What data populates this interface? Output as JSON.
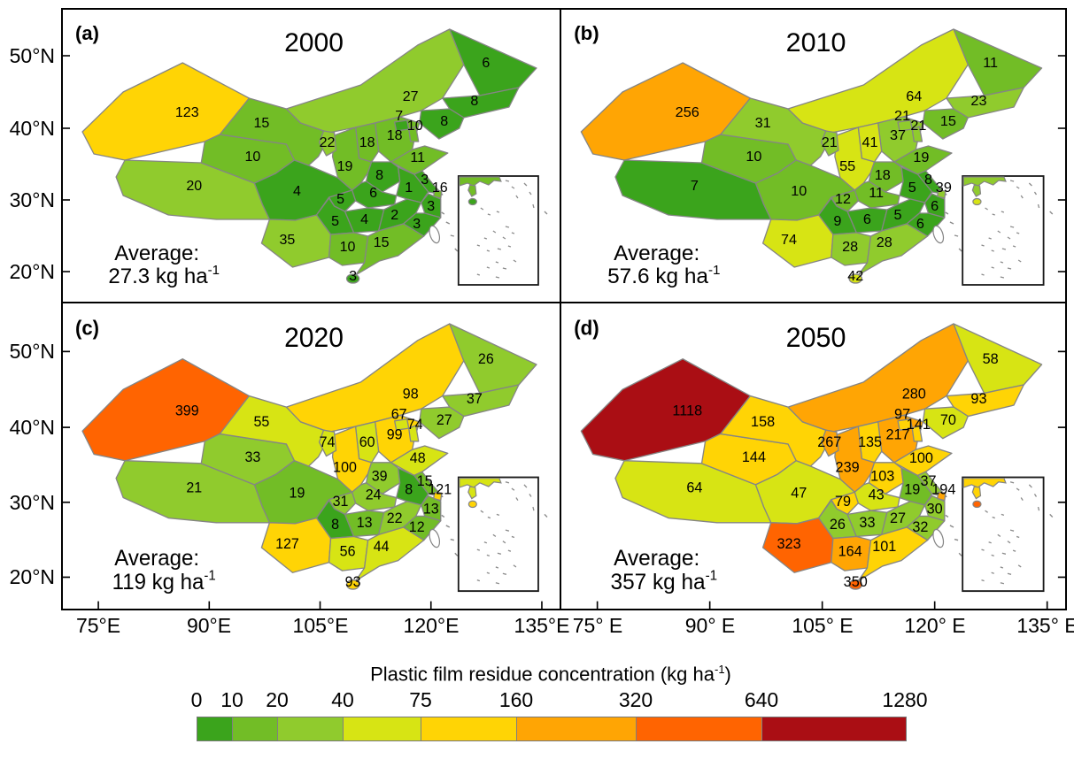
{
  "axes": {
    "lat_tick_labels": [
      "50°N",
      "40°N",
      "30°N",
      "20°N"
    ],
    "lon_tick_labels_left_column": [
      "75°E",
      "90°E",
      "105°E",
      "120°E",
      "135°E"
    ],
    "lon_tick_labels_right_column": [
      "75° E",
      "90° E",
      "105° E",
      "120° E",
      "135° E"
    ]
  },
  "colorbar": {
    "title_prefix": "Plastic film residue concentration (kg ha",
    "title_sup": "-1",
    "title_suffix": ")",
    "tick_labels": [
      "0",
      "10",
      "20",
      "40",
      "75",
      "160",
      "320",
      "640",
      "1280"
    ],
    "segment_colors": [
      "#3BA41C",
      "#72BD26",
      "#90CB2D",
      "#D7E414",
      "#FFD405",
      "#FFA504",
      "#FF6401",
      "#AA0E14"
    ]
  },
  "chart_data": {
    "type": "choropleth",
    "legend_title": "Plastic film residue concentration (kg ha-1)",
    "bin_edges": [
      0,
      10,
      20,
      40,
      75,
      160,
      320,
      640,
      1280
    ],
    "bin_colors": [
      "#3BA41C",
      "#72BD26",
      "#90CB2D",
      "#D7E414",
      "#FFD405",
      "#FFA504",
      "#FF6401",
      "#AA0E14"
    ],
    "panels": [
      {
        "key": "a",
        "label": "(a)",
        "year": "2000",
        "average_label": "Average:",
        "average_prefix": "27.3 kg ha",
        "average_sup": "-1",
        "average": 27.3,
        "values": {
          "xinjiang": 123,
          "tibet": 20,
          "qinghai": 10,
          "gansu": 15,
          "ningxia": 22,
          "inner_mongolia": 27,
          "heilongjiang": 6,
          "jilin": 8,
          "liaoning": 8,
          "beijing": 7,
          "tianjin": 10,
          "hebei": 18,
          "shanxi": 18,
          "shaanxi": 19,
          "shandong": 11,
          "henan": 8,
          "jiangsu": 3,
          "anhui": 1,
          "shanghai": 16,
          "zhejiang": 3,
          "hubei": 6,
          "chongqing": 5,
          "sichuan": 4,
          "guizhou": 5,
          "hunan": 4,
          "jiangxi": 2,
          "fujian": 3,
          "yunnan": 35,
          "guangxi": 10,
          "guangdong": 15,
          "hainan": 3
        }
      },
      {
        "key": "b",
        "label": "(b)",
        "year": "2010",
        "average_label": "Average:",
        "average_prefix": "57.6 kg ha",
        "average_sup": "-1",
        "average": 57.6,
        "values": {
          "xinjiang": 256,
          "tibet": 7,
          "qinghai": 10,
          "gansu": 31,
          "ningxia": 21,
          "inner_mongolia": 64,
          "heilongjiang": 11,
          "jilin": 23,
          "liaoning": 15,
          "beijing": 21,
          "tianjin": 21,
          "hebei": 37,
          "shanxi": 41,
          "shaanxi": 55,
          "shandong": 19,
          "henan": 18,
          "jiangsu": 8,
          "anhui": 5,
          "shanghai": 39,
          "zhejiang": 6,
          "hubei": 11,
          "chongqing": 12,
          "sichuan": 10,
          "guizhou": 9,
          "hunan": 6,
          "jiangxi": 5,
          "fujian": 6,
          "yunnan": 74,
          "guangxi": 28,
          "guangdong": 28,
          "hainan": 42
        }
      },
      {
        "key": "c",
        "label": "(c)",
        "year": "2020",
        "average_label": "Average:",
        "average_prefix": "119 kg ha",
        "average_sup": "-1",
        "average": 119,
        "values": {
          "xinjiang": 399,
          "tibet": 21,
          "qinghai": 33,
          "gansu": 55,
          "ningxia": 74,
          "inner_mongolia": 98,
          "heilongjiang": 26,
          "jilin": 37,
          "liaoning": 27,
          "beijing": 67,
          "tianjin": 74,
          "hebei": 99,
          "shanxi": 60,
          "shaanxi": 100,
          "shandong": 48,
          "henan": 39,
          "jiangsu": 15,
          "anhui": 8,
          "shanghai": 121,
          "zhejiang": 13,
          "hubei": 24,
          "chongqing": 31,
          "sichuan": 19,
          "guizhou": 8,
          "hunan": 13,
          "jiangxi": 22,
          "fujian": 12,
          "yunnan": 127,
          "guangxi": 56,
          "guangdong": 44,
          "hainan": 93
        }
      },
      {
        "key": "d",
        "label": "(d)",
        "year": "2050",
        "average_label": "Average:",
        "average_prefix": "357 kg ha",
        "average_sup": "-1",
        "average": 357,
        "values": {
          "xinjiang": 1118,
          "tibet": 64,
          "qinghai": 144,
          "gansu": 158,
          "ningxia": 267,
          "inner_mongolia": 280,
          "heilongjiang": 58,
          "jilin": 93,
          "liaoning": 70,
          "beijing": 97,
          "tianjin": 141,
          "hebei": 217,
          "shanxi": 135,
          "shaanxi": 239,
          "shandong": 100,
          "henan": 103,
          "jiangsu": 37,
          "anhui": 19,
          "shanghai": 194,
          "zhejiang": 30,
          "hubei": 43,
          "chongqing": 79,
          "sichuan": 47,
          "guizhou": 26,
          "hunan": 33,
          "jiangxi": 27,
          "fujian": 32,
          "yunnan": 323,
          "guangxi": 164,
          "guangdong": 101,
          "hainan": 350
        }
      }
    ]
  }
}
